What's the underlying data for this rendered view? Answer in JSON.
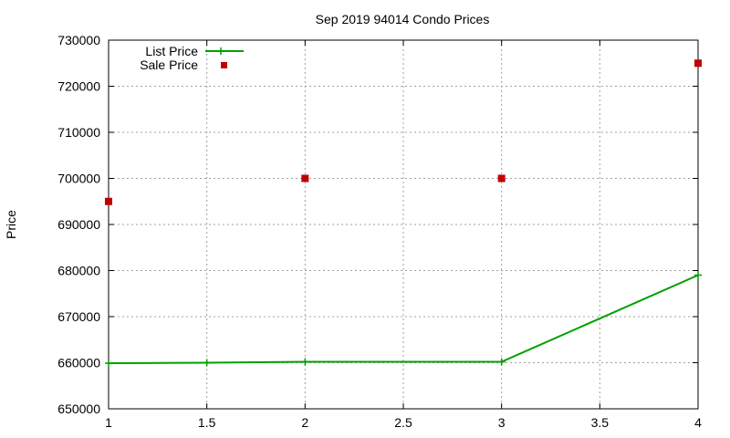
{
  "chart_data": {
    "type": "line",
    "title": "Sep 2019 94014 Condo Prices",
    "xlabel": "",
    "ylabel": "Price",
    "xlim": [
      1,
      4
    ],
    "ylim": [
      650000,
      730000
    ],
    "x_ticks": [
      1,
      1.5,
      2,
      2.5,
      3,
      3.5,
      4
    ],
    "y_ticks": [
      650000,
      660000,
      670000,
      680000,
      690000,
      700000,
      710000,
      720000,
      730000
    ],
    "grid": true,
    "legend_position": "top-left",
    "series": [
      {
        "name": "List Price",
        "style": "line",
        "color": "#00a000",
        "x": [
          1,
          1.5,
          2,
          3,
          4
        ],
        "y": [
          659900,
          660000,
          660200,
          660200,
          679000
        ]
      },
      {
        "name": "Sale Price",
        "style": "points",
        "color": "#c00000",
        "x": [
          1,
          2,
          3,
          4
        ],
        "y": [
          695000,
          700000,
          700000,
          725000
        ]
      }
    ]
  }
}
